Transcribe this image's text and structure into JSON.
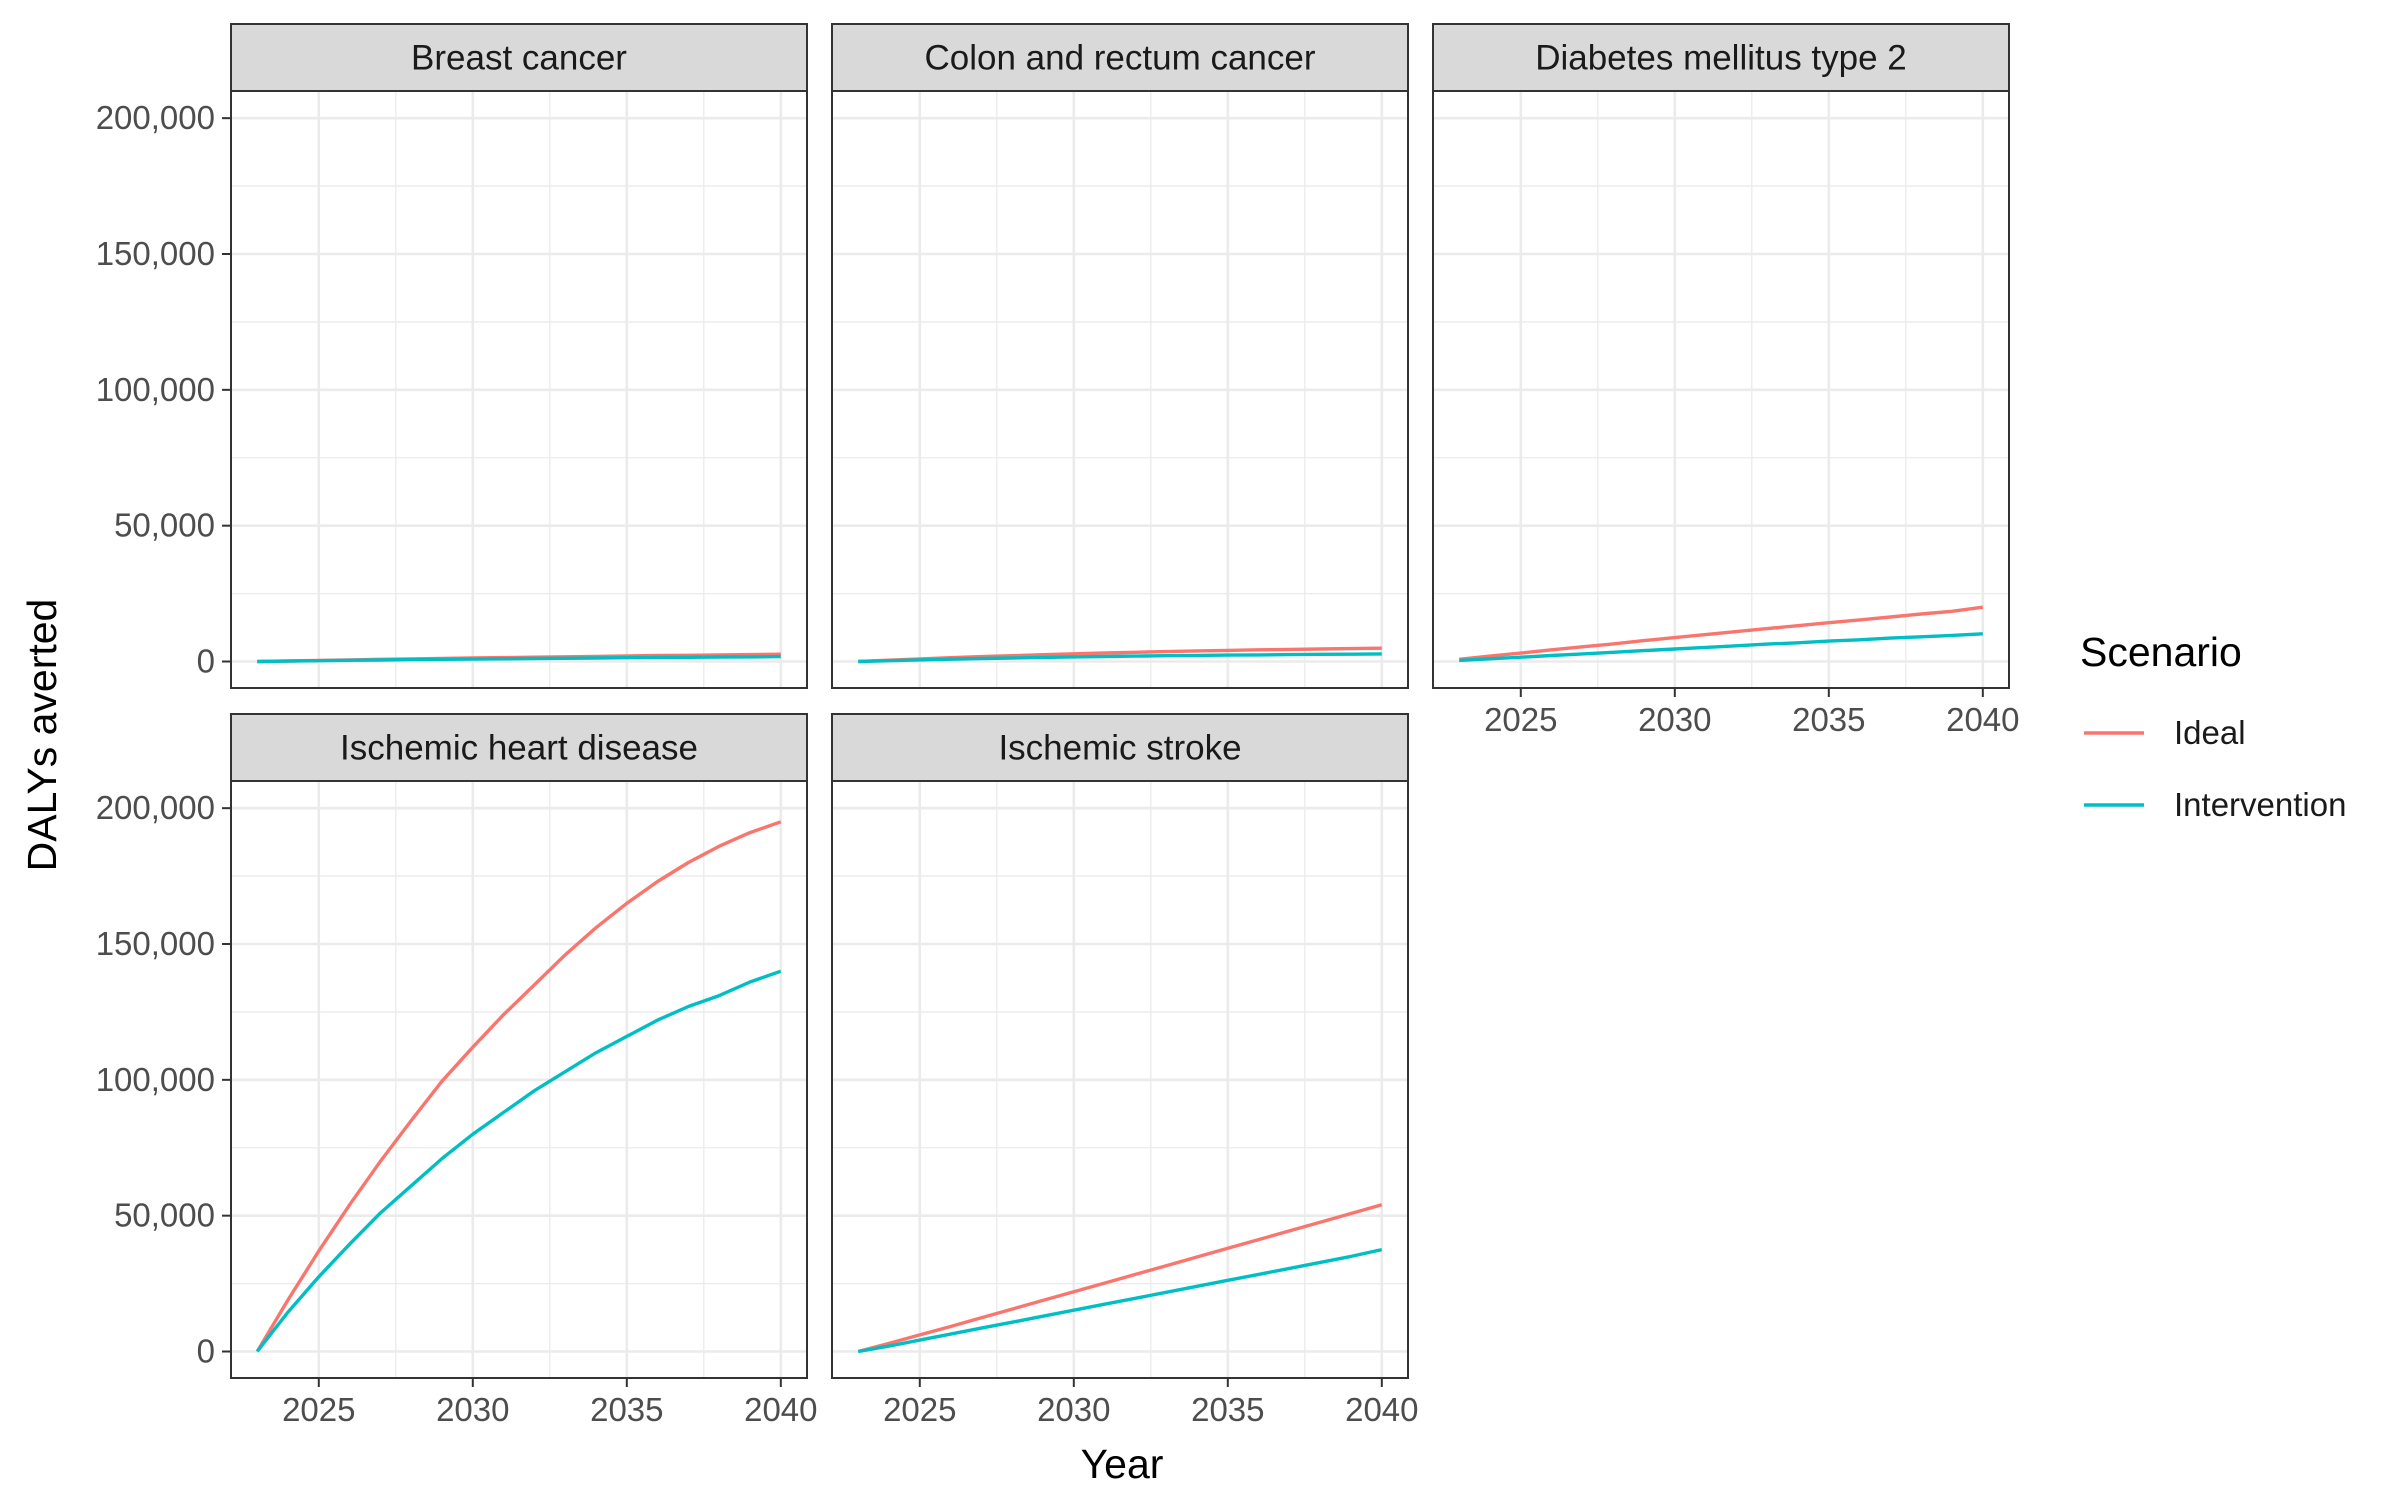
{
  "chart_data": {
    "type": "line",
    "xlabel": "Year",
    "ylabel": "DALYs averted",
    "x_ticks": [
      2025,
      2030,
      2035,
      2040
    ],
    "y_ticks": [
      0,
      50000,
      100000,
      150000,
      200000
    ],
    "y_tick_labels": [
      "0",
      "50,000",
      "100,000",
      "150,000",
      "200,000"
    ],
    "xlim": [
      2022.15,
      2040.85
    ],
    "ylim": [
      -9750,
      210000
    ],
    "grid": true,
    "legend": {
      "title": "Scenario",
      "placement": "right",
      "entries": [
        "Ideal",
        "Intervention"
      ]
    },
    "colors": {
      "Ideal": "#F8766D",
      "Intervention": "#00BFC4"
    },
    "x": [
      2023,
      2024,
      2025,
      2026,
      2027,
      2028,
      2029,
      2030,
      2031,
      2032,
      2033,
      2034,
      2035,
      2036,
      2037,
      2038,
      2039,
      2040
    ],
    "panels": [
      {
        "title": "Breast cancer",
        "series": [
          {
            "name": "Ideal",
            "values": [
              0,
              200,
              400,
              600,
              800,
              950,
              1100,
              1300,
              1450,
              1600,
              1750,
              1900,
              2050,
              2200,
              2300,
              2450,
              2550,
              2700
            ]
          },
          {
            "name": "Intervention",
            "values": [
              0,
              150,
              300,
              450,
              550,
              700,
              800,
              900,
              1000,
              1100,
              1200,
              1300,
              1400,
              1500,
              1550,
              1650,
              1700,
              1800
            ]
          }
        ]
      },
      {
        "title": "Colon and rectum cancer",
        "series": [
          {
            "name": "Ideal",
            "values": [
              0,
              500,
              950,
              1400,
              1800,
              2150,
              2500,
              2850,
              3150,
              3400,
              3650,
              3900,
              4100,
              4300,
              4450,
              4600,
              4750,
              4900
            ]
          },
          {
            "name": "Intervention",
            "values": [
              0,
              300,
              600,
              850,
              1100,
              1300,
              1500,
              1700,
              1850,
              2000,
              2150,
              2250,
              2350,
              2450,
              2550,
              2650,
              2700,
              2800
            ]
          }
        ]
      },
      {
        "title": "Diabetes mellitus type 2",
        "series": [
          {
            "name": "Ideal",
            "values": [
              800,
              2000,
              3100,
              4300,
              5400,
              6500,
              7700,
              8800,
              9900,
              11000,
              12100,
              13200,
              14300,
              15300,
              16400,
              17500,
              18500,
              20000
            ]
          },
          {
            "name": "Intervention",
            "values": [
              400,
              1000,
              1600,
              2200,
              2800,
              3400,
              4000,
              4600,
              5200,
              5800,
              6400,
              6900,
              7500,
              8000,
              8600,
              9100,
              9600,
              10200
            ]
          }
        ]
      },
      {
        "title": "Ischemic heart disease",
        "series": [
          {
            "name": "Ideal",
            "values": [
              0,
              19000,
              37000,
              54000,
              70000,
              85000,
              99500,
              112000,
              124000,
              135000,
              146000,
              156000,
              165000,
              173000,
              180000,
              186000,
              191000,
              195000
            ]
          },
          {
            "name": "Intervention",
            "values": [
              0,
              14500,
              27500,
              39500,
              51000,
              61000,
              71000,
              80000,
              88000,
              96000,
              103000,
              110000,
              116000,
              122000,
              127000,
              131000,
              136000,
              140000
            ]
          }
        ]
      },
      {
        "title": "Ischemic stroke",
        "series": [
          {
            "name": "Ideal",
            "values": [
              0,
              3000,
              6100,
              9200,
              12400,
              15600,
              18800,
              22000,
              25200,
              28400,
              31600,
              34800,
              38000,
              41200,
              44400,
              47600,
              50800,
              54000
            ]
          },
          {
            "name": "Intervention",
            "values": [
              0,
              2000,
              4200,
              6400,
              8600,
              10800,
              13000,
              15200,
              17400,
              19600,
              21800,
              24000,
              26200,
              28400,
              30600,
              32800,
              35000,
              37500
            ]
          }
        ]
      }
    ]
  }
}
